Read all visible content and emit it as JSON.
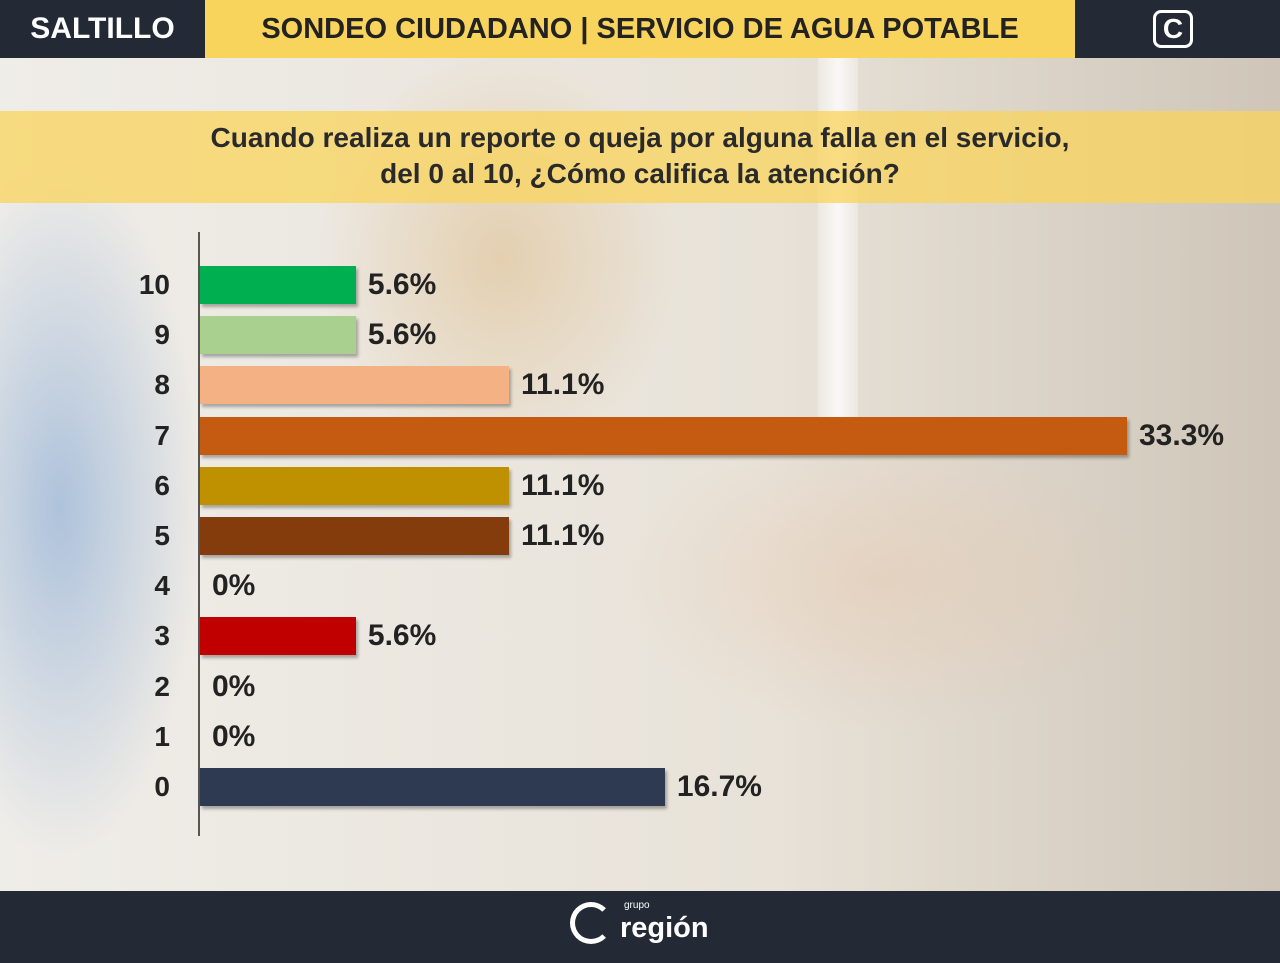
{
  "header": {
    "city": "SALTILLO",
    "title": "SONDEO CIUDADANO | SERVICIO DE AGUA POTABLE",
    "logo": "C"
  },
  "question": {
    "line1": "Cuando realiza un reporte o queja por alguna falla en el servicio,",
    "line2": "del 0 al 10, ¿Cómo califica la atención?"
  },
  "footer": {
    "brand_small": "grupo",
    "brand": "región"
  },
  "chart_data": {
    "type": "bar",
    "orientation": "horizontal",
    "xlim": [
      0,
      33.3
    ],
    "grid": false,
    "categories": [
      "10",
      "9",
      "8",
      "7",
      "6",
      "5",
      "4",
      "3",
      "2",
      "1",
      "0"
    ],
    "values": [
      5.6,
      5.6,
      11.1,
      33.3,
      11.1,
      11.1,
      0,
      5.6,
      0,
      0,
      16.7
    ],
    "labels": [
      "5.6%",
      "5.6%",
      "11.1%",
      "33.3%",
      "11.1%",
      "11.1%",
      "0%",
      "5.6%",
      "0%",
      "0%",
      "16.7%"
    ],
    "colors": [
      "#00b050",
      "#a9d08e",
      "#f4b183",
      "#c55a11",
      "#bf9000",
      "#843c0c",
      "#888888",
      "#c00000",
      "#888888",
      "#888888",
      "#2e3a52"
    ]
  }
}
